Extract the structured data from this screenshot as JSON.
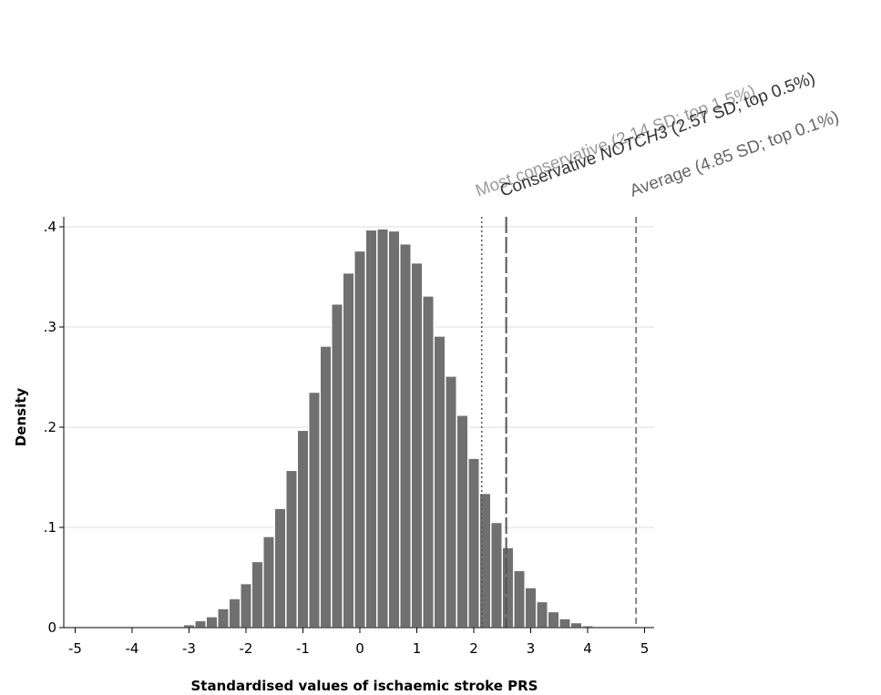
{
  "chart_data": {
    "type": "bar",
    "xlabel": "Standardised values of ischaemic stroke PRS",
    "ylabel": "Density",
    "xlim": [
      -5.2,
      5.2
    ],
    "ylim": [
      0,
      0.42
    ],
    "x_ticks": [
      -5,
      -4,
      -3,
      -2,
      -1,
      0,
      1,
      2,
      3,
      4,
      5
    ],
    "x_tick_labels": [
      "-5",
      "-4",
      "-3",
      "-2",
      "-1",
      "0",
      "1",
      "2",
      "3",
      "4",
      "5"
    ],
    "y_ticks": [
      0,
      0.1,
      0.2,
      0.3,
      0.4
    ],
    "y_tick_labels": [
      "0",
      ".1",
      ".2",
      ".3",
      ".4"
    ],
    "grid": true,
    "bar_color": "#707070",
    "bin_width": 0.2,
    "bins": [
      {
        "x": -3.6,
        "y": 0.001
      },
      {
        "x": -3.4,
        "y": 0.001
      },
      {
        "x": -3.0,
        "y": 0.003
      },
      {
        "x": -2.8,
        "y": 0.007
      },
      {
        "x": -2.6,
        "y": 0.011
      },
      {
        "x": -2.4,
        "y": 0.019
      },
      {
        "x": -2.2,
        "y": 0.029
      },
      {
        "x": -2.0,
        "y": 0.044
      },
      {
        "x": -1.8,
        "y": 0.066
      },
      {
        "x": -1.6,
        "y": 0.091
      },
      {
        "x": -1.4,
        "y": 0.119
      },
      {
        "x": -1.2,
        "y": 0.157
      },
      {
        "x": -1.0,
        "y": 0.197
      },
      {
        "x": -0.8,
        "y": 0.235
      },
      {
        "x": -0.6,
        "y": 0.281
      },
      {
        "x": -0.4,
        "y": 0.323
      },
      {
        "x": -0.2,
        "y": 0.354
      },
      {
        "x": 0.0,
        "y": 0.376
      },
      {
        "x": 0.2,
        "y": 0.397
      },
      {
        "x": 0.4,
        "y": 0.398
      },
      {
        "x": 0.6,
        "y": 0.396
      },
      {
        "x": 0.8,
        "y": 0.383
      },
      {
        "x": 1.0,
        "y": 0.364
      },
      {
        "x": 1.2,
        "y": 0.331
      },
      {
        "x": 1.4,
        "y": 0.291
      },
      {
        "x": 1.6,
        "y": 0.251
      },
      {
        "x": 1.8,
        "y": 0.212
      },
      {
        "x": 2.0,
        "y": 0.169
      },
      {
        "x": 2.2,
        "y": 0.134
      },
      {
        "x": 2.4,
        "y": 0.105
      },
      {
        "x": 2.6,
        "y": 0.08
      },
      {
        "x": 2.8,
        "y": 0.057
      },
      {
        "x": 3.0,
        "y": 0.04
      },
      {
        "x": 3.2,
        "y": 0.026
      },
      {
        "x": 3.4,
        "y": 0.016
      },
      {
        "x": 3.6,
        "y": 0.009
      },
      {
        "x": 3.8,
        "y": 0.005
      },
      {
        "x": 4.0,
        "y": 0.002
      },
      {
        "x": 4.6,
        "y": 0.001
      }
    ],
    "reference_lines": [
      {
        "x": 2.14,
        "style": "dotted",
        "color": "#555555",
        "label_color": "#9a9a9a",
        "label": "Most conservative (2.14 SD; top 1.5%)",
        "label_parts": [
          "Most conservative (2.14 SD; top 1.5%)"
        ]
      },
      {
        "x": 2.57,
        "style": "longdash",
        "color": "#555555",
        "label_color": "#333333",
        "label": "Conservative NOTCH3 (2.57 SD; top 0.5%)",
        "label_parts": [
          "Conservative ",
          "NOTCH3",
          " (2.57 SD; top 0.5%)"
        ]
      },
      {
        "x": 4.85,
        "style": "dashed",
        "color": "#666666",
        "label_color": "#666666",
        "label": "Average (4.85 SD; top 0.1%)",
        "label_parts": [
          "Average (4.85 SD; top 0.1%)"
        ]
      }
    ]
  }
}
